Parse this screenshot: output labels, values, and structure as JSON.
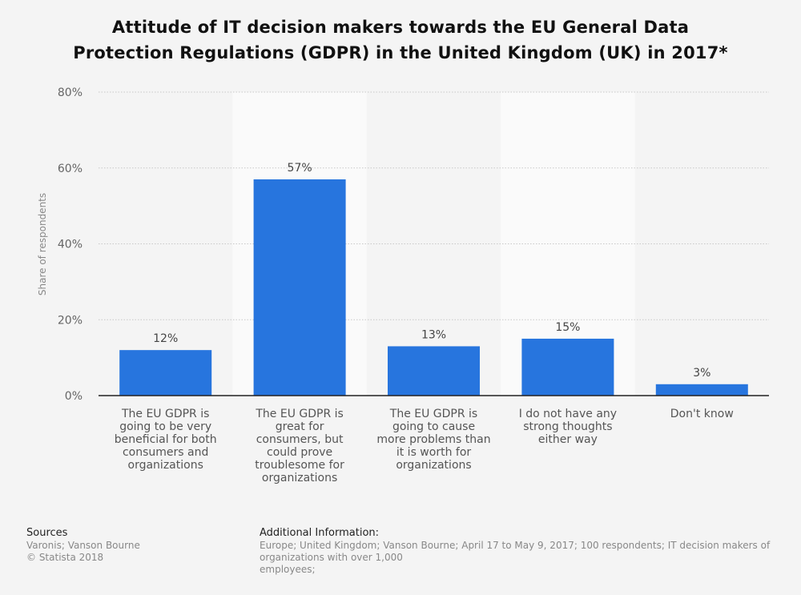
{
  "chart_data": {
    "type": "bar",
    "title_lines": [
      "Attitude of IT decision makers towards the EU General Data",
      "Protection Regulations (GDPR) in the United Kingdom (UK) in 2017*"
    ],
    "ylabel": "Share of respondents",
    "ylim": [
      0,
      80
    ],
    "yticks": [
      "0%",
      "20%",
      "40%",
      "60%",
      "80%"
    ],
    "grid": true,
    "categories": [
      [
        "The EU GDPR is",
        "going to be very",
        "beneficial for both",
        "consumers and",
        "organizations"
      ],
      [
        "The EU GDPR is",
        "great for",
        "consumers, but",
        "could prove",
        "troublesome for",
        "organizations"
      ],
      [
        "The EU GDPR is",
        "going to cause",
        "more problems than",
        "it is worth for",
        "organizations"
      ],
      [
        "I do not have any",
        "strong thoughts",
        "either way"
      ],
      [
        "Don't know"
      ]
    ],
    "values": [
      12,
      57,
      13,
      15,
      3
    ],
    "value_labels": [
      "12%",
      "57%",
      "13%",
      "15%",
      "3%"
    ],
    "bar_color": "#2775de"
  },
  "footer": {
    "sources_heading": "Sources",
    "sources_line1": "Varonis; Vanson Bourne",
    "sources_line2": "© Statista 2018",
    "additional_heading": "Additional Information:",
    "additional_line1": "Europe; United Kingdom; Vanson Bourne; April 17 to May 9, 2017; 100 respondents; IT decision makers of organizations with over 1,000",
    "additional_line2": "employees;"
  }
}
